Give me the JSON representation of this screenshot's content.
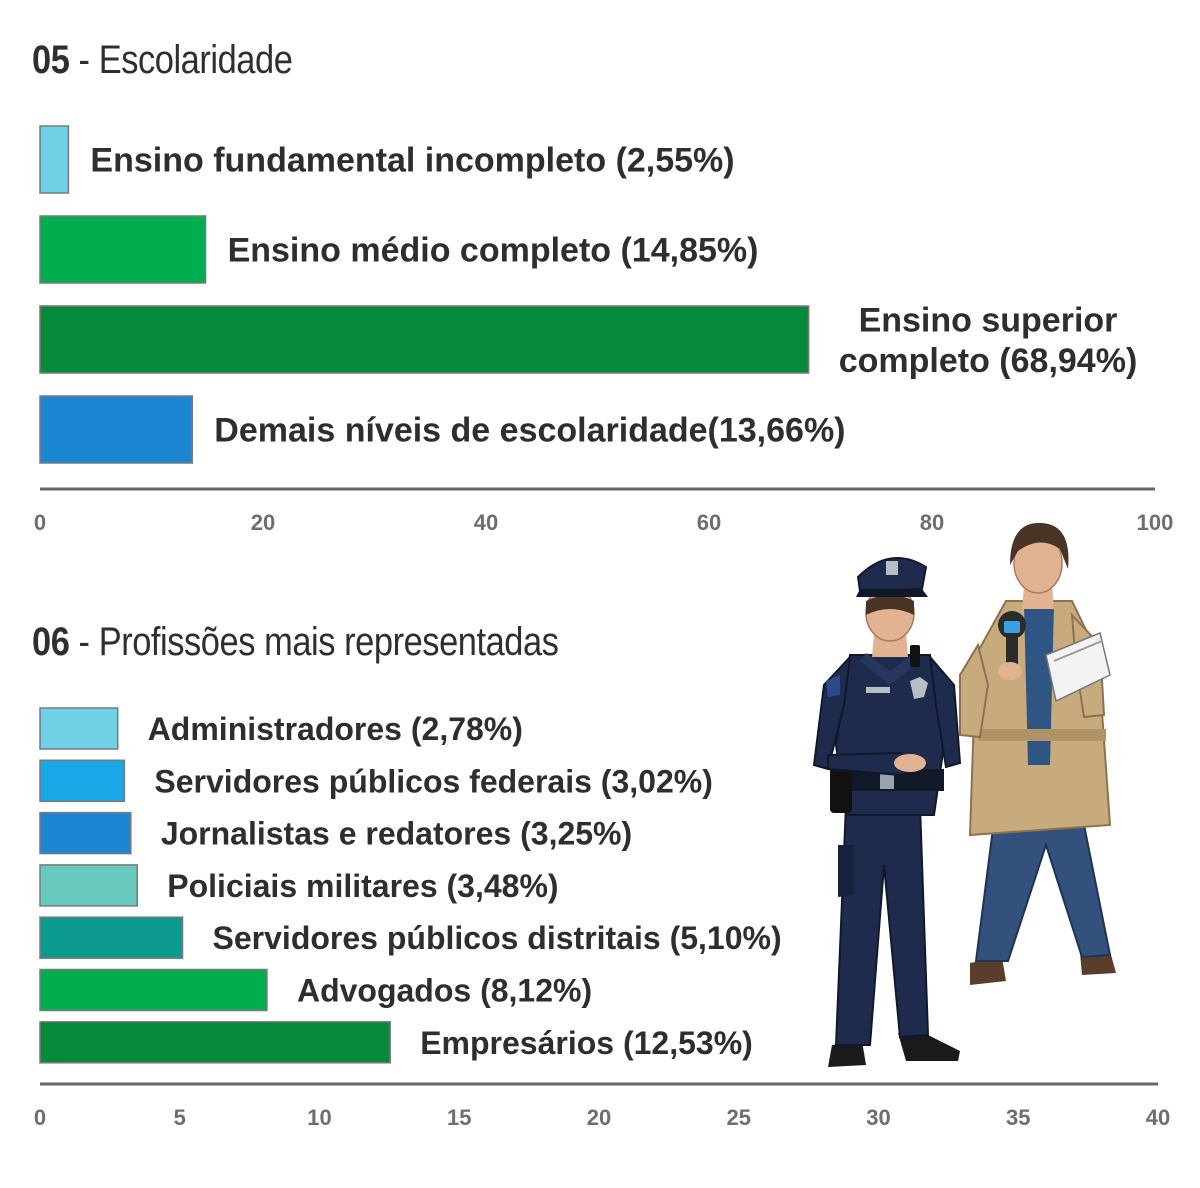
{
  "section_05": {
    "number": "05",
    "separator": " - ",
    "title": "Escolaridade"
  },
  "section_06": {
    "number": "06",
    "separator": " - ",
    "title": "Profissões mais representadas"
  },
  "chart_data": [
    {
      "type": "bar",
      "orientation": "horizontal",
      "categories": [
        "Ensino fundamental incompleto",
        "Ensino médio completo",
        "Ensino superior completo",
        "Demais níveis de escolaridade"
      ],
      "values": [
        2.55,
        14.85,
        68.94,
        13.66
      ],
      "labels": [
        [
          "Ensino fundamental incompleto (2,55%)"
        ],
        [
          "Ensino médio completo (14,85%)"
        ],
        [
          "Ensino superior",
          "completo (68,94%)"
        ],
        [
          "Demais níveis de escolaridade(13,66%)"
        ]
      ],
      "colors": [
        "#6fd0e6",
        "#00ae4f",
        "#058a3c",
        "#1b86d1"
      ],
      "xlim": [
        0,
        100
      ],
      "xticks": [
        "0",
        "20",
        "40",
        "60",
        "80",
        "100"
      ],
      "grid": false
    },
    {
      "type": "bar",
      "orientation": "horizontal",
      "categories": [
        "Administradores",
        "Servidores públicos federais",
        "Jornalistas e redatores",
        "Policiais militares",
        "Servidores públicos distritais",
        "Advogados",
        "Empresários"
      ],
      "values": [
        2.78,
        3.02,
        3.25,
        3.48,
        5.1,
        8.12,
        12.53
      ],
      "labels": [
        [
          "Administradores (2,78%)"
        ],
        [
          "Servidores públicos federais (3,02%)"
        ],
        [
          "Jornalistas e redatores (3,25%)"
        ],
        [
          "Policiais militares (3,48%)"
        ],
        [
          "Servidores públicos distritais (5,10%)"
        ],
        [
          "Advogados (8,12%)"
        ],
        [
          "Empresários (12,53%)"
        ]
      ],
      "colors": [
        "#6fd0e6",
        "#1aa7e8",
        "#1b86d1",
        "#66c9bc",
        "#0d9a8e",
        "#00ae4f",
        "#058a3c"
      ],
      "xlim": [
        0,
        40
      ],
      "xticks": [
        "0",
        "5",
        "10",
        "15",
        "20",
        "25",
        "30",
        "35",
        "40"
      ],
      "grid": false
    }
  ],
  "illustration": {
    "subjects": [
      "police-officer",
      "journalist"
    ],
    "colors": {
      "uniform": "#1e2b4d",
      "trench_coat": "#c8ab7d",
      "jeans": "#34507d",
      "skin": "#e2b393",
      "hair": "#4a3426"
    }
  }
}
